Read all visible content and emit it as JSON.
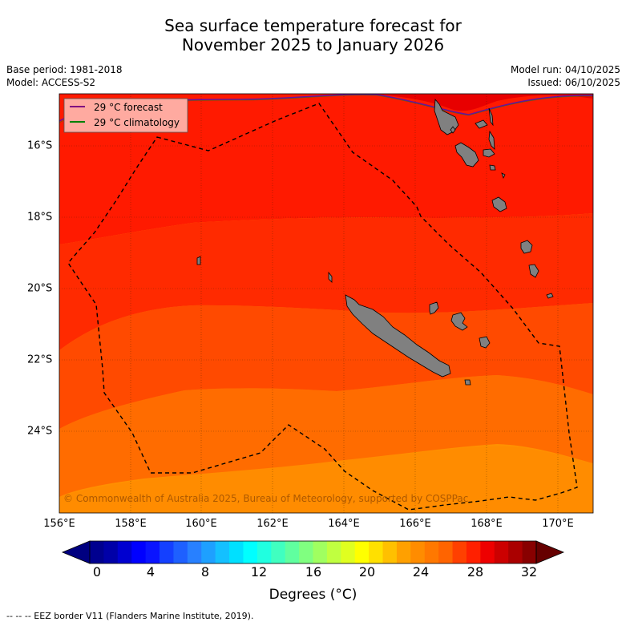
{
  "header": {
    "title_line1": "Sea surface temperature forecast for",
    "title_line2": "November 2025 to January 2026",
    "base_period": "Base period: 1981-2018",
    "model": "Model: ACCESS-S2",
    "model_run": "Model run: 04/10/2025",
    "issued": "Issued: 06/10/2025"
  },
  "map": {
    "region_lon": [
      156,
      171
    ],
    "region_lat": [
      -26.3,
      -14.6
    ],
    "lon_labels": [
      "156°E",
      "158°E",
      "160°E",
      "162°E",
      "164°E",
      "166°E",
      "168°E",
      "170°E"
    ],
    "lat_labels": [
      "16°S",
      "18°S",
      "20°S",
      "22°S",
      "24°S"
    ],
    "legend": {
      "forecast_label": "29 °C  forecast",
      "climatology_label": "29 °C  climatology",
      "forecast_color": "#800080",
      "climatology_color": "#008000"
    },
    "copyright": "© Commonwealth of Australia 2025, Bureau of Meteorology, supported by COSPPac",
    "land_color": "#808080",
    "features": [
      "New Caledonia",
      "Vanuatu",
      "Loyalty Islands",
      "EEZ border"
    ]
  },
  "colorbar": {
    "tick_labels": [
      "0",
      "4",
      "8",
      "12",
      "16",
      "20",
      "24",
      "28",
      "32"
    ],
    "title": "Degrees (°C)",
    "colors": [
      "#00008f",
      "#0000a8",
      "#0000d0",
      "#0000ff",
      "#0a14ff",
      "#1440ff",
      "#1e60ff",
      "#2880ff",
      "#1ea0ff",
      "#14c0ff",
      "#00e0ff",
      "#00ffff",
      "#20ffe0",
      "#40ffc0",
      "#60ff9f",
      "#80ff80",
      "#a0ff60",
      "#c0ff40",
      "#e0ff20",
      "#ffff00",
      "#ffe000",
      "#ffc000",
      "#ffa000",
      "#ff8c00",
      "#ff7800",
      "#ff6400",
      "#ff4000",
      "#ff2000",
      "#ee0000",
      "#cc0000",
      "#aa0000",
      "#880000"
    ]
  },
  "footer": {
    "eez_note": "--  --  -- EEZ border V11 (Flanders Marine Institute, 2019)."
  }
}
